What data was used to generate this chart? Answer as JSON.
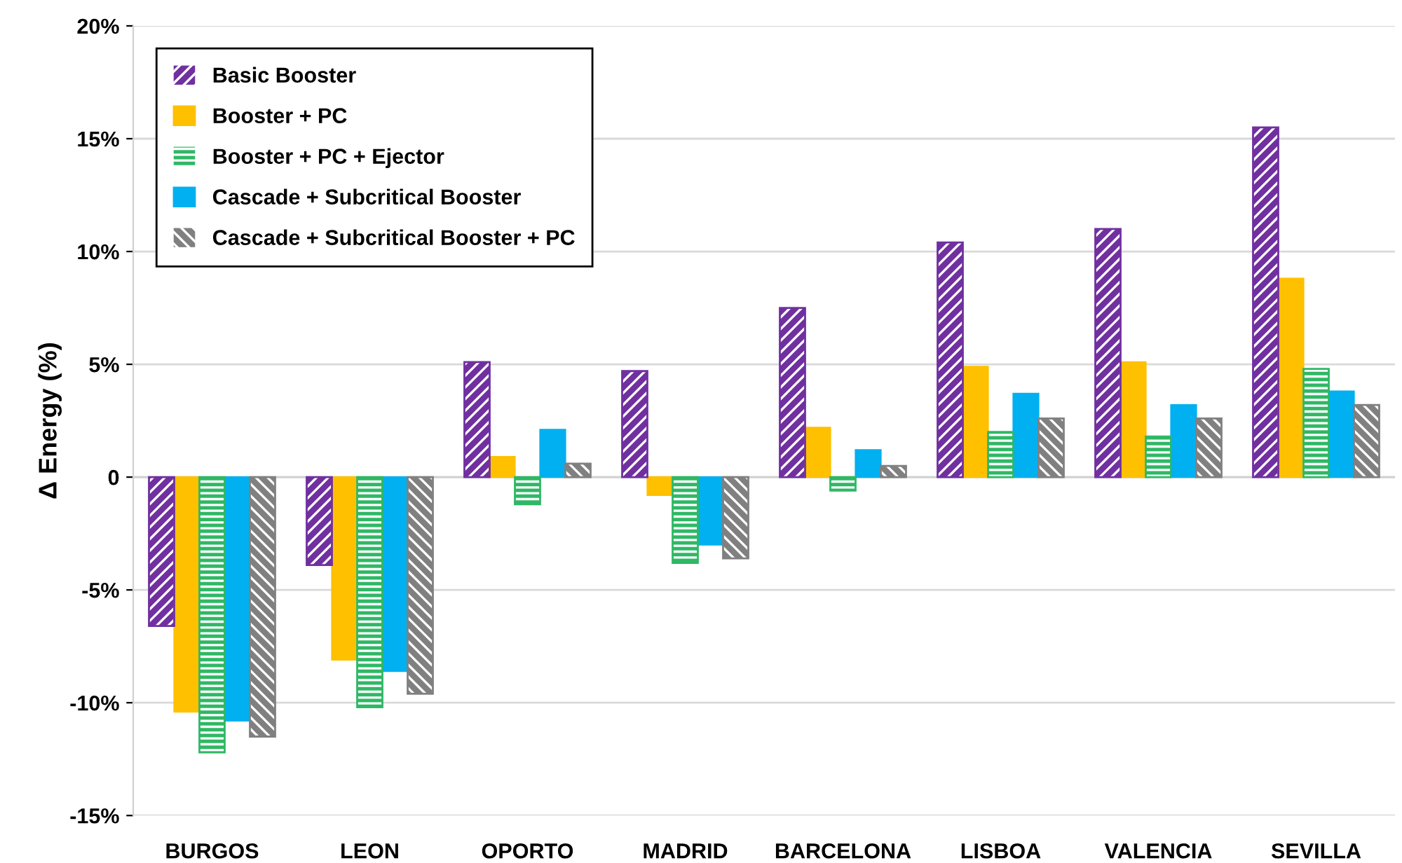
{
  "chart_data": {
    "type": "bar",
    "ylabel": "Δ Energy (%)",
    "categories": [
      "BURGOS",
      "LEON",
      "OPORTO",
      "MADRID",
      "BARCELONA",
      "LISBOA",
      "VALENCIA",
      "SEVILLA"
    ],
    "series": [
      {
        "name": "Basic Booster",
        "color": "#7030a0",
        "values": [
          -6.6,
          -3.9,
          5.1,
          4.7,
          7.5,
          10.4,
          11.0,
          15.5
        ]
      },
      {
        "name": "Booster + PC",
        "color": "#ffc000",
        "values": [
          -10.4,
          -8.1,
          0.9,
          -0.8,
          2.2,
          4.9,
          5.1,
          8.8
        ]
      },
      {
        "name": "Booster + PC + Ejector",
        "color": "#2fb865",
        "values": [
          -12.2,
          -10.2,
          -1.2,
          -3.8,
          -0.6,
          2.0,
          1.8,
          4.8
        ]
      },
      {
        "name": "Cascade + Subcritical Booster",
        "color": "#00b0f0",
        "values": [
          -10.8,
          -8.6,
          2.1,
          -3.0,
          1.2,
          3.7,
          3.2,
          3.8
        ]
      },
      {
        "name": "Cascade + Subcritical Booster + PC",
        "color": "#808080",
        "values": [
          -11.5,
          -9.6,
          0.6,
          -3.6,
          0.5,
          2.6,
          2.6,
          3.2
        ]
      }
    ],
    "ylim": [
      -15,
      20
    ],
    "yticks": [
      {
        "value": -15,
        "label": "-15%"
      },
      {
        "value": -10,
        "label": "-10%"
      },
      {
        "value": -5,
        "label": "-5%"
      },
      {
        "value": 0,
        "label": "0"
      },
      {
        "value": 5,
        "label": "5%"
      },
      {
        "value": 10,
        "label": "10%"
      },
      {
        "value": 15,
        "label": "15%"
      },
      {
        "value": 20,
        "label": "20%"
      }
    ],
    "grid": "y",
    "legend": "top left"
  }
}
